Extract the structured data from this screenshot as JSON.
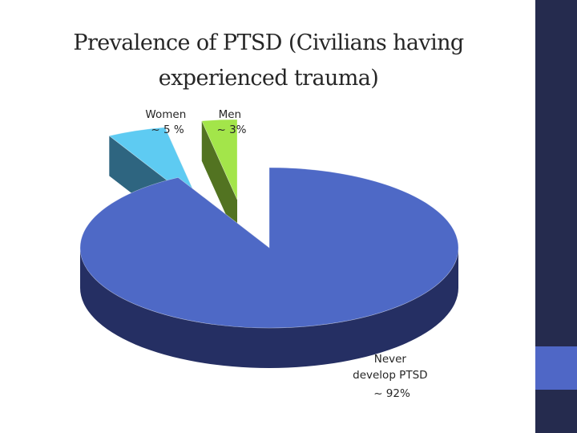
{
  "slide": {
    "title_line1": "Prevalence of PTSD (Civilians having",
    "title_line2": "experienced trauma)"
  },
  "colors": {
    "sidebar": "#252B4E",
    "accent": "#4F67C6",
    "never": "#4E69C6",
    "never_side": "#252F63",
    "women": "#5ECBF2",
    "women_side": "#2E6580",
    "men": "#A3E54A",
    "men_side": "#527321"
  },
  "chart_data": {
    "type": "pie",
    "style": "3d-exploded",
    "title": "",
    "legend": "none",
    "slices": [
      {
        "name": "Never develop PTSD",
        "value": 92,
        "label_lines": [
          "Never",
          "develop PTSD",
          "~ 92%"
        ]
      },
      {
        "name": "Women",
        "value": 5,
        "label_lines": [
          "Women",
          "~ 5 %"
        ]
      },
      {
        "name": "Men",
        "value": 3,
        "label_lines": [
          "Men",
          "~ 3%"
        ]
      }
    ]
  }
}
